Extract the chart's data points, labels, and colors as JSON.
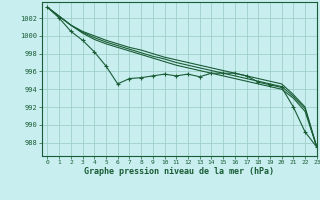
{
  "title": "Graphe pression niveau de la mer (hPa)",
  "background_color": "#c8eef0",
  "grid_color": "#a0cfc8",
  "line_color": "#1a5c35",
  "xlim": [
    -0.5,
    23
  ],
  "ylim": [
    986.5,
    1003.8
  ],
  "yticks": [
    988,
    990,
    992,
    994,
    996,
    998,
    1000,
    1002
  ],
  "xticks": [
    0,
    1,
    2,
    3,
    4,
    5,
    6,
    7,
    8,
    9,
    10,
    11,
    12,
    13,
    14,
    15,
    16,
    17,
    18,
    19,
    20,
    21,
    22,
    23
  ],
  "series": [
    {
      "x": [
        0,
        1,
        2,
        3,
        4,
        5,
        6,
        7,
        8,
        9,
        10,
        11,
        12,
        13,
        14,
        15,
        16,
        17,
        18,
        19,
        20,
        21,
        22,
        23
      ],
      "y": [
        1003.2,
        1002.0,
        1000.5,
        999.5,
        998.2,
        996.6,
        994.6,
        995.2,
        995.3,
        995.5,
        995.7,
        995.5,
        995.7,
        995.4,
        995.8,
        995.8,
        995.8,
        995.5,
        994.8,
        994.5,
        994.2,
        992.0,
        989.2,
        987.5
      ],
      "marker": true
    },
    {
      "x": [
        0,
        1,
        2,
        3,
        4,
        5,
        6,
        7,
        8,
        9,
        10,
        11,
        12,
        13,
        14,
        15,
        16,
        17,
        18,
        19,
        20,
        21,
        22,
        23
      ],
      "y": [
        1003.2,
        1002.2,
        1001.2,
        1000.3,
        999.6,
        999.1,
        998.7,
        998.3,
        997.9,
        997.5,
        997.1,
        996.7,
        996.4,
        996.1,
        995.8,
        995.5,
        995.2,
        994.9,
        994.6,
        994.3,
        994.0,
        993.0,
        991.5,
        987.5
      ],
      "marker": false
    },
    {
      "x": [
        0,
        1,
        2,
        3,
        4,
        5,
        6,
        7,
        8,
        9,
        10,
        11,
        12,
        13,
        14,
        15,
        16,
        17,
        18,
        19,
        20,
        21,
        22,
        23
      ],
      "y": [
        1003.2,
        1002.2,
        1001.2,
        1000.4,
        999.8,
        999.3,
        998.9,
        998.5,
        998.1,
        997.7,
        997.4,
        997.0,
        996.7,
        996.4,
        996.1,
        995.8,
        995.5,
        995.2,
        994.9,
        994.6,
        994.3,
        993.2,
        991.8,
        987.5
      ],
      "marker": false
    },
    {
      "x": [
        0,
        1,
        2,
        3,
        4,
        5,
        6,
        7,
        8,
        9,
        10,
        11,
        12,
        13,
        14,
        15,
        16,
        17,
        18,
        19,
        20,
        21,
        22,
        23
      ],
      "y": [
        1003.2,
        1002.2,
        1001.2,
        1000.5,
        1000.0,
        999.5,
        999.1,
        998.7,
        998.4,
        998.0,
        997.6,
        997.3,
        997.0,
        996.7,
        996.4,
        996.1,
        995.8,
        995.5,
        995.2,
        994.9,
        994.6,
        993.4,
        992.0,
        987.5
      ],
      "marker": false
    }
  ]
}
